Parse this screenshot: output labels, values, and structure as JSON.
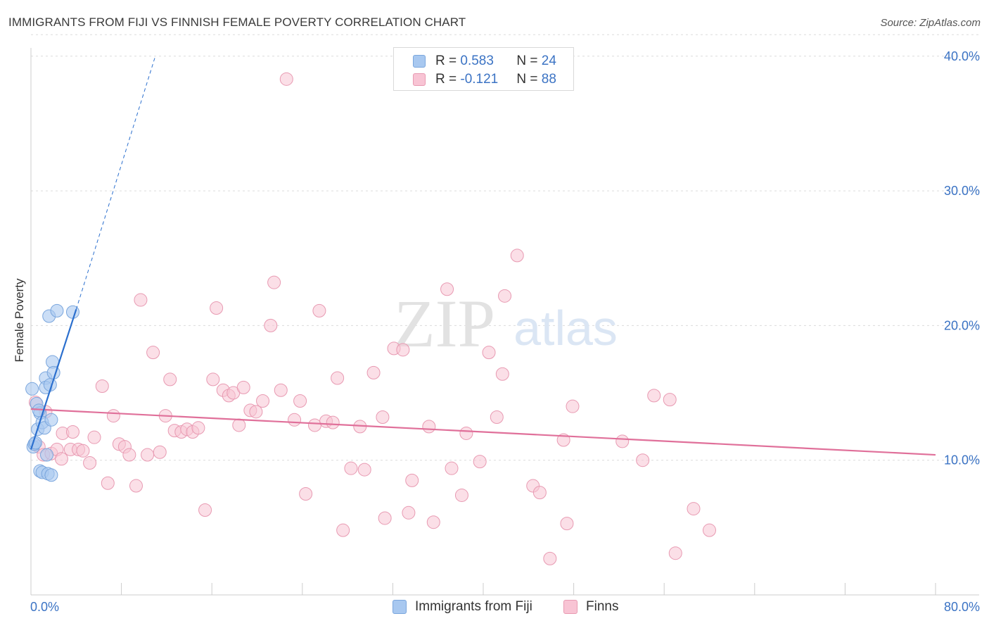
{
  "header": {
    "title": "IMMIGRANTS FROM FIJI VS FINNISH FEMALE POVERTY CORRELATION CHART",
    "source": "Source: ZipAtlas.com"
  },
  "watermark": {
    "zip": "ZIP",
    "atlas": "atlas"
  },
  "legend_top": {
    "rows": [
      {
        "r_label": "R = ",
        "r_value": "0.583",
        "n_label": "N = ",
        "n_value": "24",
        "color": "#a8c8f0",
        "border": "#7aa6dd"
      },
      {
        "r_label": "R = ",
        "r_value": "-0.121",
        "n_label": "N = ",
        "n_value": "88",
        "color": "#f8c4d4",
        "border": "#e89ab2"
      }
    ]
  },
  "legend_bottom": {
    "items": [
      {
        "label": "Immigrants from Fiji",
        "color": "#a8c8f0",
        "border": "#7aa6dd"
      },
      {
        "label": "Finns",
        "color": "#f8c4d4",
        "border": "#e89ab2"
      }
    ]
  },
  "chart_data": {
    "type": "scatter",
    "title": "IMMIGRANTS FROM FIJI VS FINNISH FEMALE POVERTY CORRELATION CHART",
    "xlabel": "",
    "ylabel": "Female Poverty",
    "xlim": [
      0,
      80
    ],
    "ylim": [
      0,
      42
    ],
    "x_tick_labels": [
      "0.0%",
      "80.0%"
    ],
    "y_ticks": [
      10,
      20,
      30,
      40
    ],
    "y_tick_labels": [
      "10.0%",
      "20.0%",
      "30.0%",
      "40.0%"
    ],
    "grid": true,
    "legend": "top-center",
    "series": [
      {
        "name": "Immigrants from Fiji",
        "color": "#7aa6dd",
        "fill": "#a8c8f0",
        "trend_color": "#2b6fce",
        "trend": {
          "x1": 0.0,
          "y1": 10.8,
          "x2": 4.0,
          "y2": 21.2,
          "dash_x2": 11.0,
          "dash_y2": 40.0
        },
        "points": [
          [
            0.1,
            15.3
          ],
          [
            0.2,
            11.0
          ],
          [
            0.3,
            11.2
          ],
          [
            0.5,
            14.2
          ],
          [
            0.6,
            12.3
          ],
          [
            0.8,
            9.2
          ],
          [
            0.8,
            13.5
          ],
          [
            1.0,
            12.8
          ],
          [
            1.0,
            9.1
          ],
          [
            1.2,
            12.4
          ],
          [
            1.3,
            16.1
          ],
          [
            1.3,
            15.4
          ],
          [
            1.4,
            10.4
          ],
          [
            1.5,
            9.0
          ],
          [
            1.6,
            20.7
          ],
          [
            1.7,
            15.6
          ],
          [
            1.8,
            8.9
          ],
          [
            1.8,
            13.0
          ],
          [
            1.9,
            17.3
          ],
          [
            2.0,
            16.5
          ],
          [
            2.3,
            21.1
          ],
          [
            3.7,
            21.0
          ],
          [
            0.4,
            11.3
          ],
          [
            0.7,
            13.7
          ]
        ]
      },
      {
        "name": "Finns",
        "color": "#e89ab2",
        "fill": "#f8c4d4",
        "trend_color": "#e0709a",
        "trend": {
          "x1": 0.0,
          "y1": 13.8,
          "x2": 80.0,
          "y2": 10.4
        },
        "points": [
          [
            0.4,
            14.3
          ],
          [
            0.7,
            11.0
          ],
          [
            1.1,
            10.4
          ],
          [
            1.3,
            13.6
          ],
          [
            1.8,
            10.5
          ],
          [
            2.3,
            10.8
          ],
          [
            2.7,
            10.1
          ],
          [
            2.8,
            12.0
          ],
          [
            3.5,
            10.8
          ],
          [
            3.7,
            12.1
          ],
          [
            4.2,
            10.8
          ],
          [
            4.6,
            10.7
          ],
          [
            5.2,
            9.8
          ],
          [
            5.6,
            11.7
          ],
          [
            6.3,
            15.5
          ],
          [
            6.8,
            8.3
          ],
          [
            7.3,
            13.3
          ],
          [
            7.8,
            11.2
          ],
          [
            8.3,
            11.0
          ],
          [
            8.7,
            10.4
          ],
          [
            9.3,
            8.1
          ],
          [
            9.7,
            21.9
          ],
          [
            10.3,
            10.4
          ],
          [
            10.8,
            18.0
          ],
          [
            11.4,
            10.6
          ],
          [
            11.9,
            13.3
          ],
          [
            12.3,
            16.0
          ],
          [
            12.7,
            12.2
          ],
          [
            13.3,
            12.1
          ],
          [
            13.8,
            12.3
          ],
          [
            14.3,
            12.1
          ],
          [
            14.8,
            12.4
          ],
          [
            15.4,
            6.3
          ],
          [
            16.1,
            16.0
          ],
          [
            16.4,
            21.3
          ],
          [
            17.0,
            15.2
          ],
          [
            17.5,
            14.8
          ],
          [
            17.9,
            15.0
          ],
          [
            18.4,
            12.6
          ],
          [
            18.8,
            15.4
          ],
          [
            19.4,
            13.7
          ],
          [
            19.9,
            13.6
          ],
          [
            20.5,
            14.4
          ],
          [
            21.2,
            20.0
          ],
          [
            21.5,
            23.2
          ],
          [
            22.1,
            15.2
          ],
          [
            22.6,
            38.3
          ],
          [
            23.3,
            13.0
          ],
          [
            23.8,
            14.4
          ],
          [
            24.3,
            7.5
          ],
          [
            25.1,
            12.6
          ],
          [
            25.5,
            21.1
          ],
          [
            26.1,
            12.9
          ],
          [
            26.7,
            12.8
          ],
          [
            27.1,
            16.1
          ],
          [
            27.6,
            4.8
          ],
          [
            28.3,
            9.4
          ],
          [
            29.1,
            12.5
          ],
          [
            29.5,
            9.3
          ],
          [
            30.3,
            16.5
          ],
          [
            31.1,
            13.2
          ],
          [
            31.3,
            5.7
          ],
          [
            32.1,
            18.3
          ],
          [
            32.9,
            18.2
          ],
          [
            33.4,
            6.1
          ],
          [
            33.7,
            8.5
          ],
          [
            35.2,
            12.5
          ],
          [
            35.6,
            5.4
          ],
          [
            36.8,
            22.7
          ],
          [
            37.2,
            9.4
          ],
          [
            38.1,
            7.4
          ],
          [
            38.5,
            12.0
          ],
          [
            39.7,
            9.9
          ],
          [
            40.5,
            18.0
          ],
          [
            41.2,
            13.2
          ],
          [
            41.7,
            16.4
          ],
          [
            41.9,
            22.2
          ],
          [
            43.0,
            25.2
          ],
          [
            44.4,
            8.1
          ],
          [
            45.0,
            7.6
          ],
          [
            45.9,
            2.7
          ],
          [
            47.1,
            11.5
          ],
          [
            47.4,
            5.3
          ],
          [
            47.9,
            14.0
          ],
          [
            52.3,
            11.4
          ],
          [
            54.1,
            10.0
          ],
          [
            55.1,
            14.8
          ],
          [
            56.5,
            14.5
          ]
        ]
      }
    ],
    "extra_finns_points": [
      [
        58.6,
        6.4
      ],
      [
        57.0,
        3.1
      ],
      [
        60.0,
        4.8
      ]
    ]
  }
}
